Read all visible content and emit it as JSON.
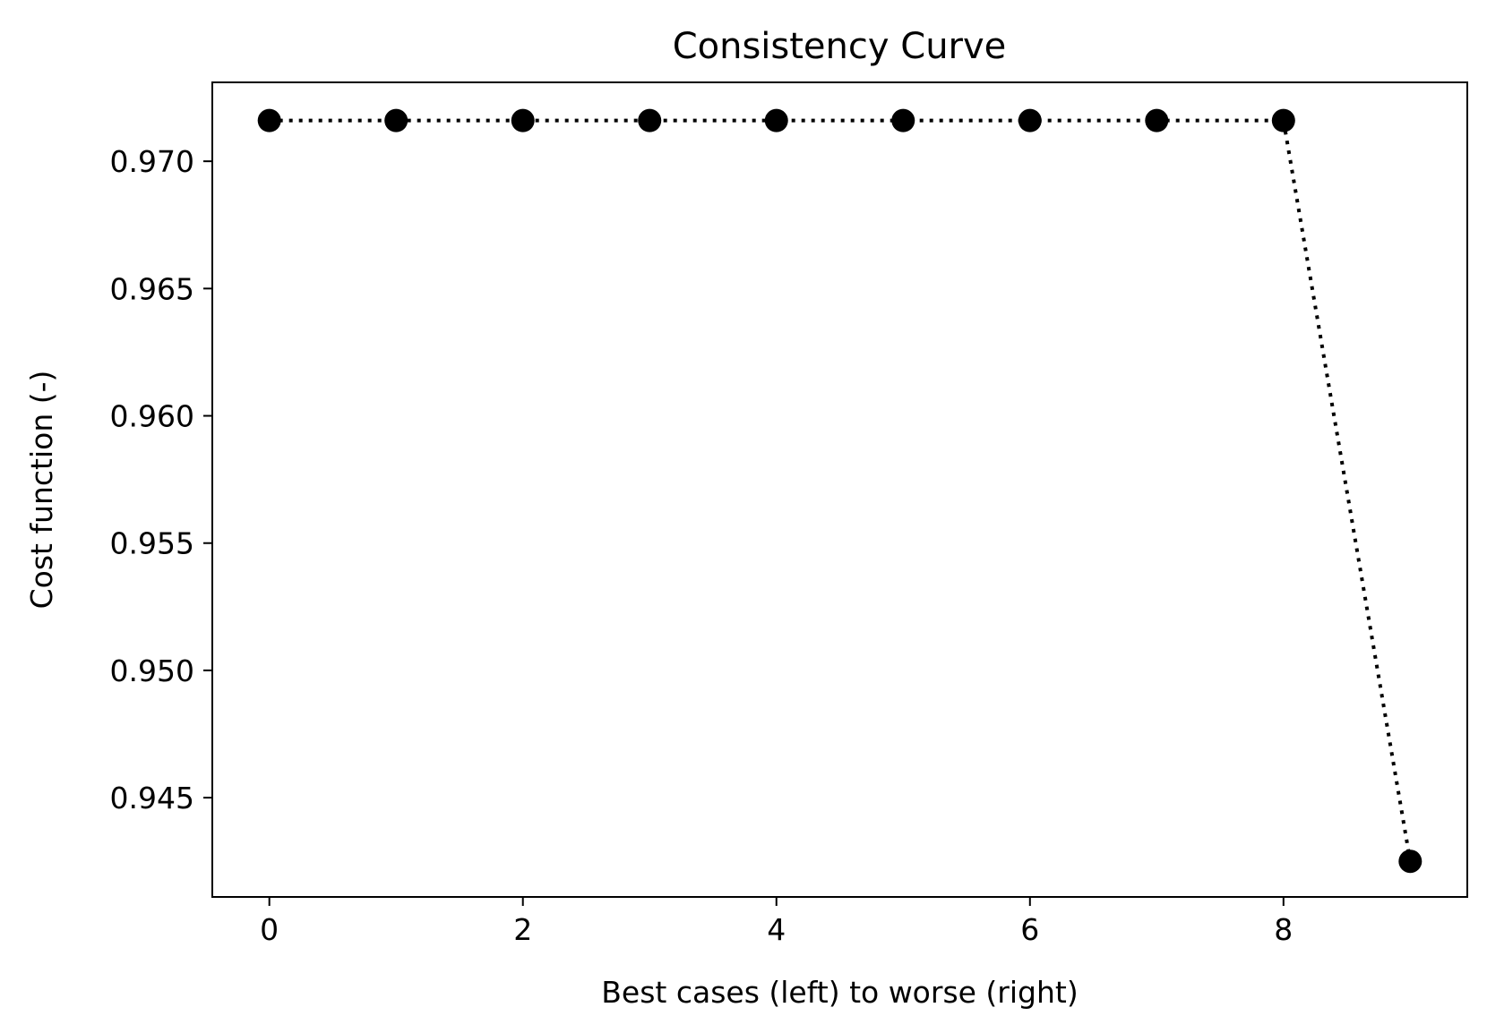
{
  "chart_data": {
    "type": "line",
    "title": "Consistency Curve",
    "xlabel": "Best cases (left) to worse (right)",
    "ylabel": "Cost function (-)",
    "x": [
      0,
      1,
      2,
      3,
      4,
      5,
      6,
      7,
      8,
      9
    ],
    "series": [
      {
        "values": [
          0.9716,
          0.9716,
          0.9716,
          0.9716,
          0.9716,
          0.9716,
          0.9716,
          0.9716,
          0.9716,
          0.9425
        ],
        "color": "#000000",
        "line_style": "dotted",
        "marker": "circle"
      }
    ],
    "xlim": [
      -0.45,
      9.45
    ],
    "ylim": [
      0.9411,
      0.9731
    ],
    "xticks": [
      0,
      2,
      4,
      6,
      8
    ],
    "xtick_labels": [
      "0",
      "2",
      "4",
      "6",
      "8"
    ],
    "yticks": [
      0.945,
      0.95,
      0.955,
      0.96,
      0.965,
      0.97
    ],
    "ytick_labels": [
      "0.945",
      "0.950",
      "0.955",
      "0.960",
      "0.965",
      "0.970"
    ],
    "grid": false,
    "legend": "none"
  }
}
